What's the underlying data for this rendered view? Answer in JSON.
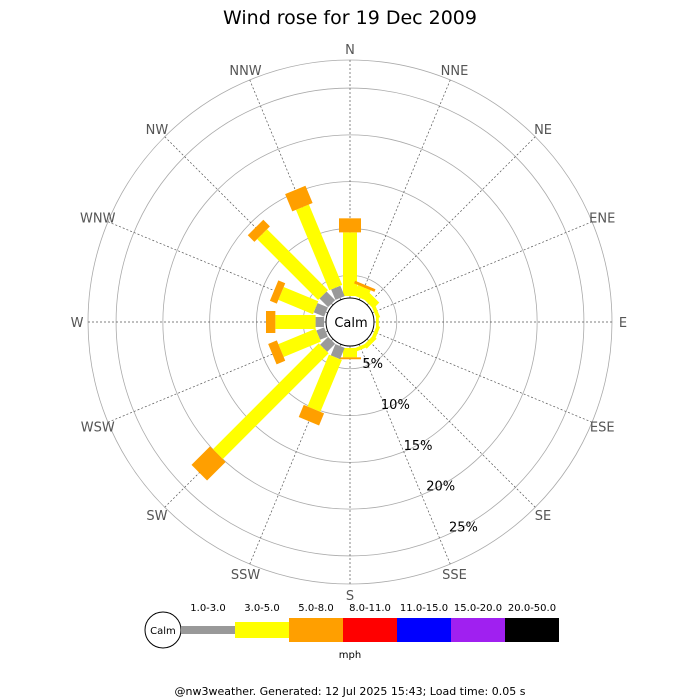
{
  "title": "Wind rose for 19 Dec 2009",
  "footer": "@nw3weather. Generated: 12 Jul 2025 15:43; Load time: 0.05 s",
  "calm_label": "Calm",
  "units": "mph",
  "directions": [
    "N",
    "NNE",
    "NE",
    "ENE",
    "E",
    "ESE",
    "SE",
    "SSE",
    "S",
    "SSW",
    "SW",
    "WSW",
    "W",
    "WNW",
    "NW",
    "NNW"
  ],
  "ring_labels": [
    "5%",
    "10%",
    "15%",
    "20%",
    "25%"
  ],
  "legend": [
    {
      "label": "1.0-3.0",
      "color": "#999999"
    },
    {
      "label": "3.0-5.0",
      "color": "#ffff00"
    },
    {
      "label": "5.0-8.0",
      "color": "#ff9f00"
    },
    {
      "label": "8.0-11.0",
      "color": "#ff0000"
    },
    {
      "label": "11.0-15.0",
      "color": "#0000ff"
    },
    {
      "label": "15.0-20.0",
      "color": "#a020f0"
    },
    {
      "label": "20.0-50.0",
      "color": "#000000"
    }
  ],
  "chart_data": {
    "type": "wind-rose",
    "title": "Wind rose for 19 Dec 2009",
    "units": "mph",
    "radial_unit": "% frequency",
    "radial_ticks": [
      5,
      10,
      15,
      20,
      25
    ],
    "radial_max": 28,
    "direction_labels": [
      "N",
      "NNE",
      "NE",
      "ENE",
      "E",
      "ESE",
      "SE",
      "SSE",
      "S",
      "SSW",
      "SW",
      "WSW",
      "W",
      "WNW",
      "NW",
      "NNW"
    ],
    "speed_bins": [
      "1.0-3.0",
      "3.0-5.0",
      "5.0-8.0",
      "8.0-11.0",
      "11.0-15.0",
      "15.0-20.0",
      "20.0-50.0"
    ],
    "cumulative_by_direction": [
      {
        "dir": "N",
        "values": [
          0,
          6.8,
          8.3,
          0,
          0,
          0,
          0
        ]
      },
      {
        "dir": "NNE",
        "values": [
          0,
          1.2,
          1.5,
          0,
          0,
          0,
          0
        ]
      },
      {
        "dir": "NE",
        "values": [
          0,
          0.9,
          0,
          0,
          0,
          0,
          0
        ]
      },
      {
        "dir": "ENE",
        "values": [
          0,
          0.4,
          0,
          0,
          0,
          0,
          0
        ]
      },
      {
        "dir": "E",
        "values": [
          0,
          0.3,
          0,
          0,
          0,
          0,
          0
        ]
      },
      {
        "dir": "ESE",
        "values": [
          0,
          0.4,
          0,
          0,
          0,
          0,
          0
        ]
      },
      {
        "dir": "SE",
        "values": [
          0,
          0.5,
          0,
          0,
          0,
          0,
          0
        ]
      },
      {
        "dir": "SSE",
        "values": [
          0,
          0.4,
          0,
          0,
          0,
          0,
          0
        ]
      },
      {
        "dir": "S",
        "values": [
          0,
          1.0,
          1.2,
          0,
          0,
          0,
          0
        ]
      },
      {
        "dir": "SSW",
        "values": [
          1.3,
          7.3,
          8.7,
          0,
          0,
          0,
          0
        ]
      },
      {
        "dir": "SW",
        "values": [
          1.2,
          17.2,
          20.0,
          0,
          0,
          0,
          0
        ]
      },
      {
        "dir": "WSW",
        "values": [
          0.9,
          5.2,
          6.2,
          0,
          0,
          0,
          0
        ]
      },
      {
        "dir": "W",
        "values": [
          0.9,
          5.2,
          6.2,
          0,
          0,
          0,
          0
        ]
      },
      {
        "dir": "WNW",
        "values": [
          1.2,
          5.2,
          6.0,
          0,
          0,
          0,
          0
        ]
      },
      {
        "dir": "NW",
        "values": [
          1.3,
          10.5,
          11.5,
          0,
          0,
          0,
          0
        ]
      },
      {
        "dir": "NNW",
        "values": [
          1.2,
          10.5,
          12.5,
          0,
          0,
          0,
          0
        ]
      }
    ],
    "grid": true,
    "legend_position": "bottom"
  }
}
